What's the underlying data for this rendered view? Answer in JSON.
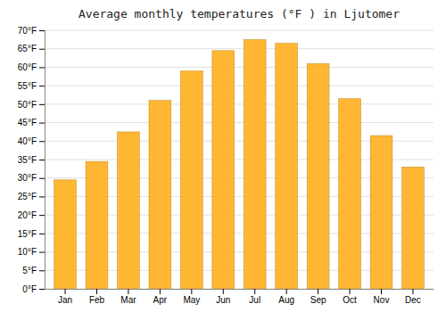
{
  "chart_data": {
    "type": "bar",
    "title": "Average monthly temperatures (°F ) in Ljutomer",
    "categories": [
      "Jan",
      "Feb",
      "Mar",
      "Apr",
      "May",
      "Jun",
      "Jul",
      "Aug",
      "Sep",
      "Oct",
      "Nov",
      "Dec"
    ],
    "values": [
      29.5,
      34.5,
      42.5,
      51.0,
      59.0,
      64.5,
      67.5,
      66.5,
      61.0,
      51.5,
      41.5,
      33.0
    ],
    "color": "#FFB733",
    "ylim": [
      0,
      70
    ],
    "yticks": [
      {
        "value": 0,
        "label": "0°F"
      },
      {
        "value": 5,
        "label": "5°F"
      },
      {
        "value": 10,
        "label": "10°F"
      },
      {
        "value": 15,
        "label": "15°F"
      },
      {
        "value": 20,
        "label": "20°F"
      },
      {
        "value": 25,
        "label": "25°F"
      },
      {
        "value": 30,
        "label": "30°F"
      },
      {
        "value": 35,
        "label": "35°F"
      },
      {
        "value": 40,
        "label": "40°F"
      },
      {
        "value": 45,
        "label": "45°F"
      },
      {
        "value": 50,
        "label": "50°F"
      },
      {
        "value": 55,
        "label": "55°F"
      },
      {
        "value": 60,
        "label": "60°F"
      },
      {
        "value": 65,
        "label": "65°F"
      },
      {
        "value": 70,
        "label": "70°F"
      }
    ],
    "grid": true
  }
}
